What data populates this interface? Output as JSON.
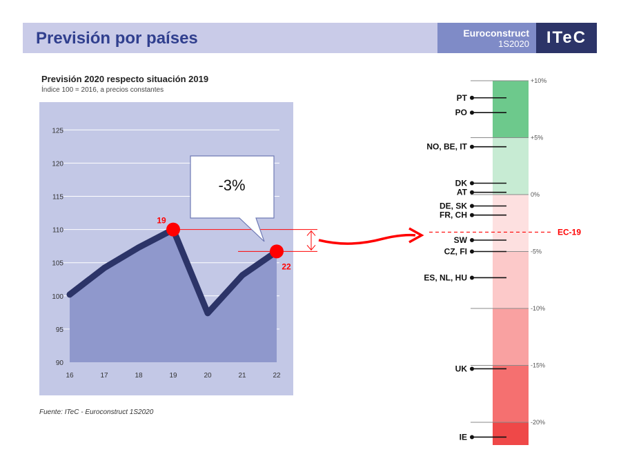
{
  "header": {
    "title": "Previsión por países",
    "brand": "Euroconstruct",
    "edition": "1S2020",
    "logo": "ITeC"
  },
  "colors": {
    "header_band": "#c9cbe8",
    "title": "#303f8e",
    "brand_bg": "#7f8bc7",
    "logo_bg": "#2c3468",
    "plot_bg": "#c3c8e6",
    "area": "#8f98cc",
    "line": "#2c3468",
    "highlight": "#ff0000"
  },
  "chart_data": [
    {
      "type": "line",
      "title": "Previsión 2020 respecto situación 2019",
      "subtitle": "Índice 100 = 2016, a precios constantes",
      "categories": [
        "16",
        "17",
        "18",
        "19",
        "20",
        "21",
        "22"
      ],
      "values": [
        100.2,
        104.2,
        107.3,
        110,
        97.4,
        103.1,
        106.7
      ],
      "ylim": [
        90,
        125
      ],
      "yticks": [
        "90",
        "95",
        "100",
        "105",
        "110",
        "115",
        "120",
        "125"
      ],
      "grid": true,
      "highlight_points": [
        {
          "x": "19",
          "label": "19"
        },
        {
          "x": "22",
          "label": "22"
        }
      ],
      "callout": "-3%",
      "source": "Fuente: ITeC - Euroconstruct 1S2020"
    },
    {
      "type": "bar",
      "ylim": [
        -22,
        10
      ],
      "scale_labels": [
        {
          "value": 10,
          "label": "+10%"
        },
        {
          "value": 5,
          "label": "+5%"
        },
        {
          "value": 0,
          "label": "0%"
        },
        {
          "value": -5,
          "label": "-5%"
        },
        {
          "value": -10,
          "label": "-10%"
        },
        {
          "value": -15,
          "label": "-15%"
        },
        {
          "value": -20,
          "label": "-20%"
        }
      ],
      "countries": [
        {
          "label": "PT",
          "value": 8.5
        },
        {
          "label": "PO",
          "value": 7.2
        },
        {
          "label": "NO, BE, IT",
          "value": 4.2
        },
        {
          "label": "DK",
          "value": 1
        },
        {
          "label": "AT",
          "value": 0.2
        },
        {
          "label": "DE, SK",
          "value": -1
        },
        {
          "label": "FR, CH",
          "value": -1.8
        },
        {
          "label": "SW",
          "value": -4
        },
        {
          "label": "CZ, FI",
          "value": -5
        },
        {
          "label": "ES, NL, HU",
          "value": -7.3
        },
        {
          "label": "UK",
          "value": -15.3
        },
        {
          "label": "IE",
          "value": -21.3
        }
      ],
      "reference": {
        "label": "EC-19",
        "value": -3.3
      }
    }
  ]
}
